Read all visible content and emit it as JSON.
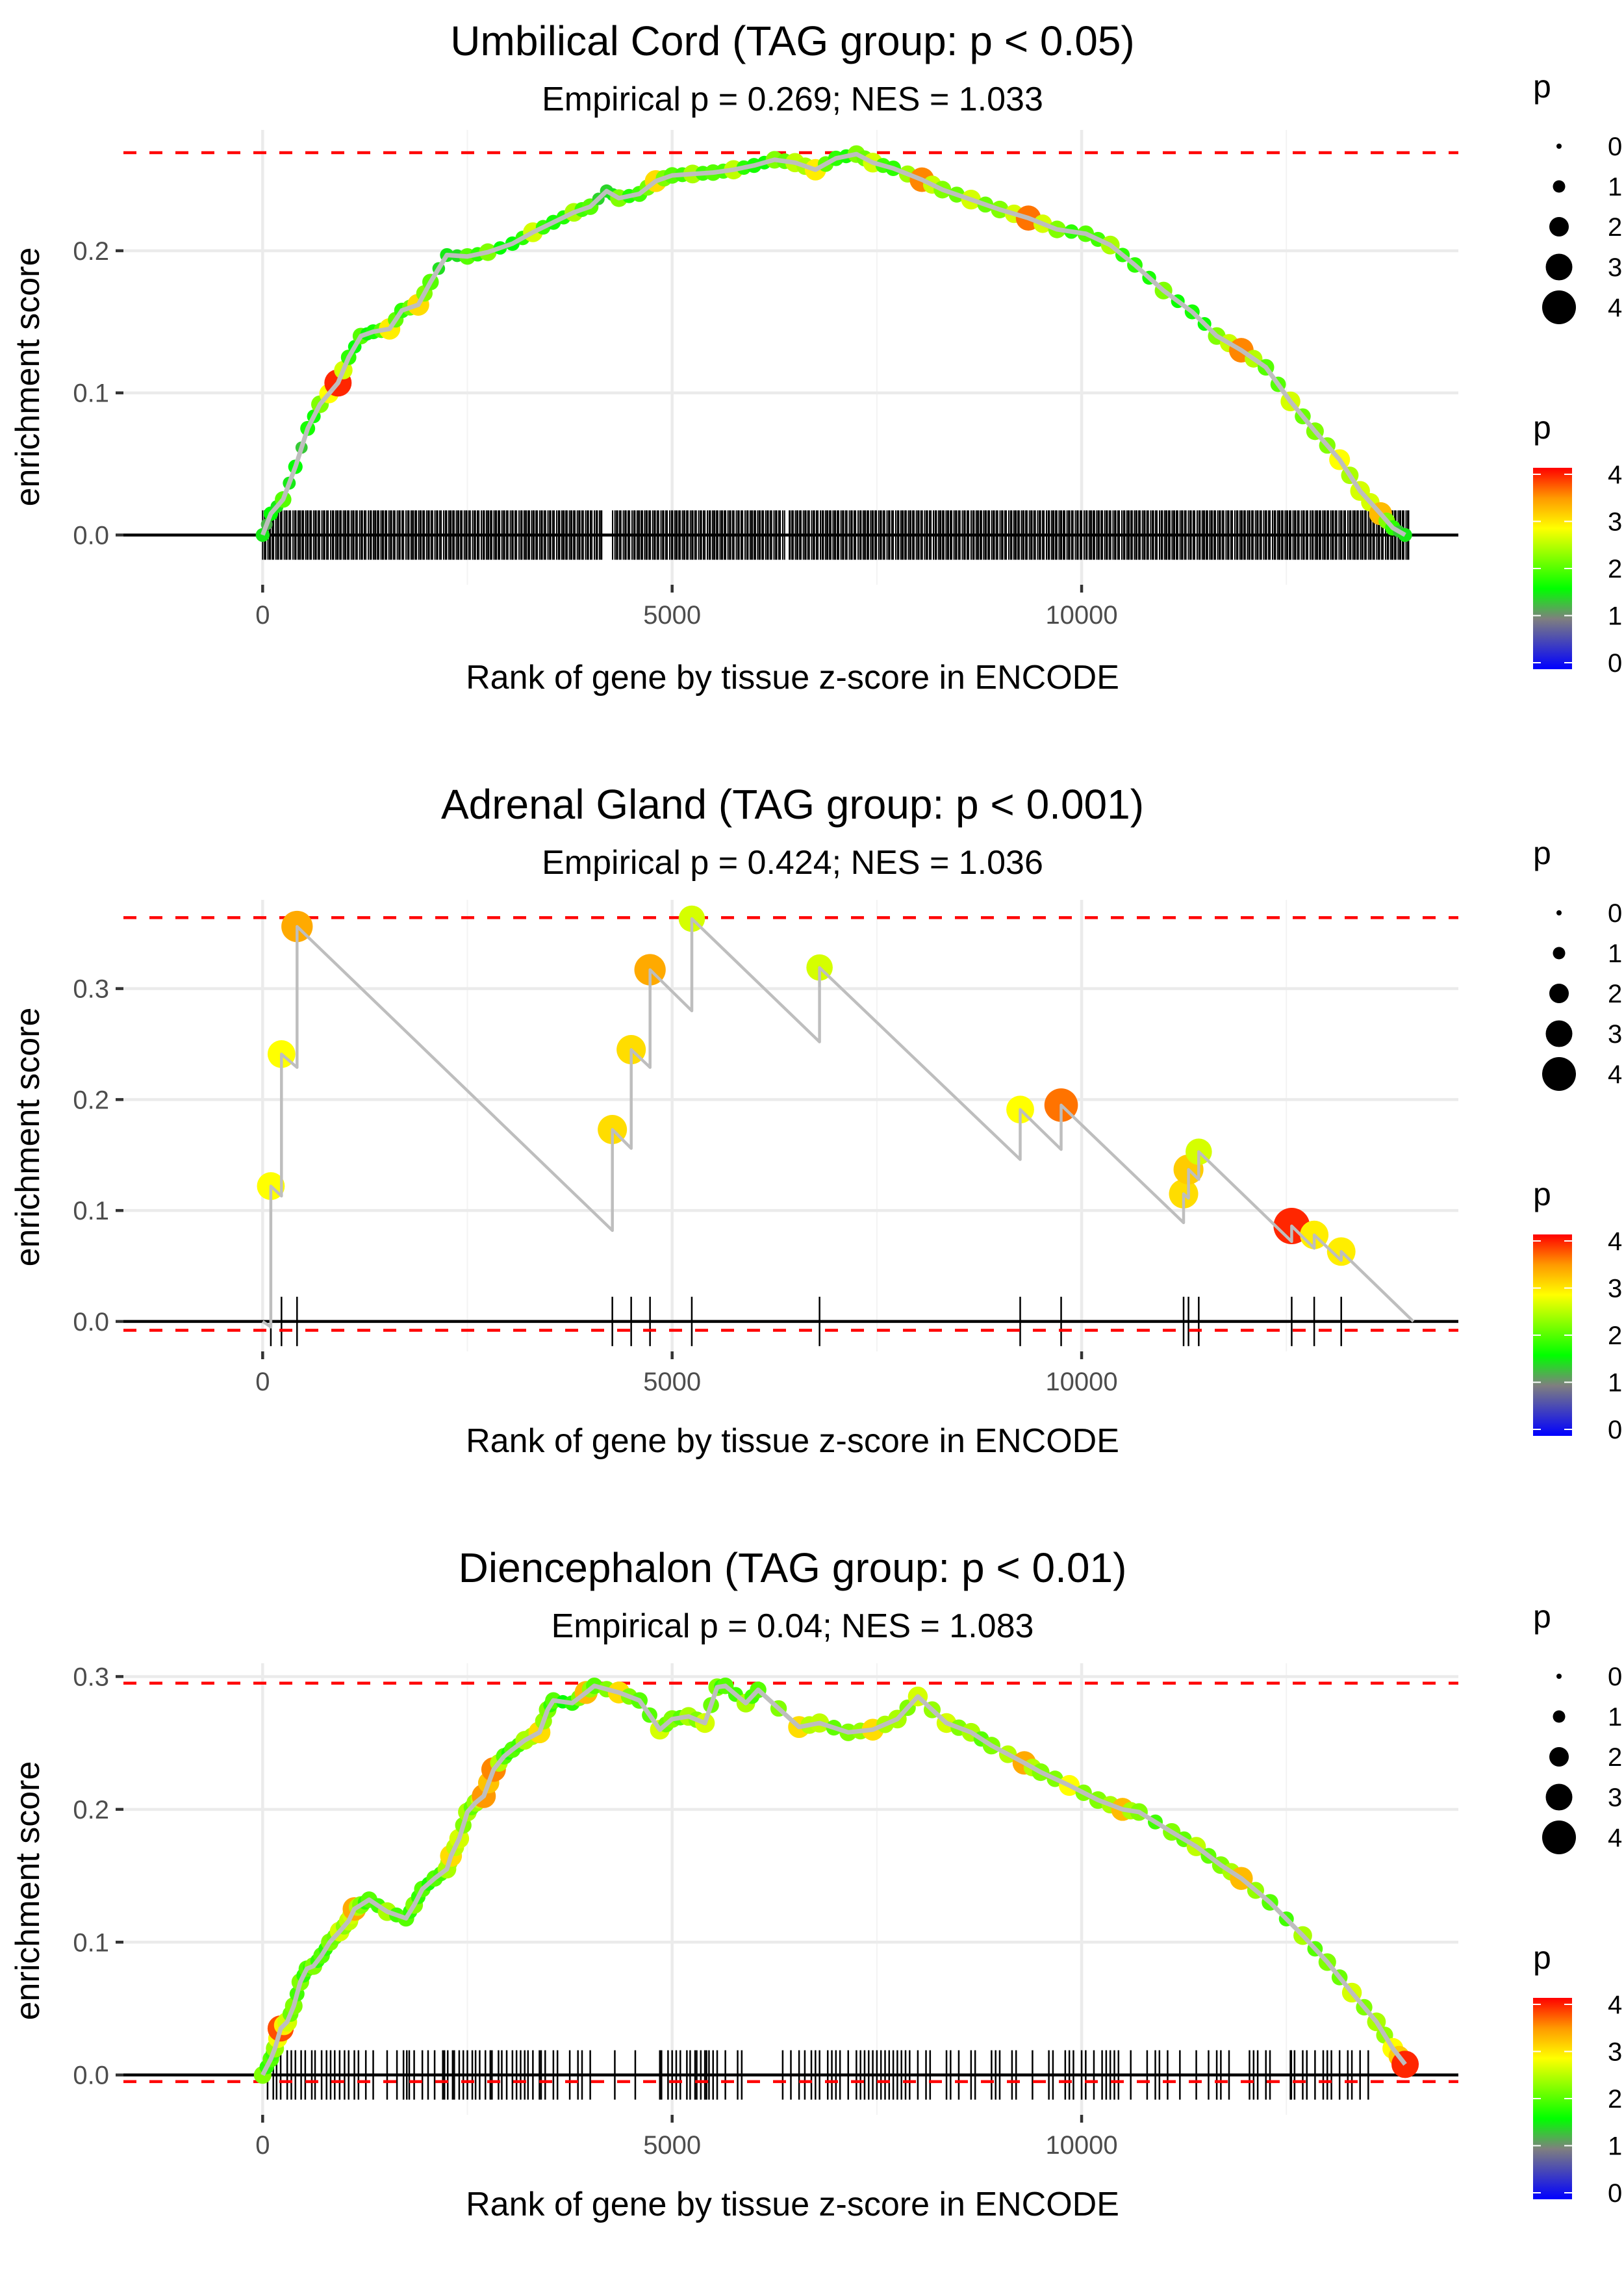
{
  "chart_data": [
    {
      "type": "line",
      "title": "Umbilical Cord (TAG group: p < 0.05)",
      "subtitle": "Empirical p = 0.269; NES = 1.033",
      "xlabel": "Rank of gene by tissue z-score in ENCODE",
      "ylabel": "enrichment score",
      "xlim": [
        -1700,
        14600
      ],
      "ylim": [
        -0.035,
        0.285
      ],
      "x_ticks": [
        0,
        5000,
        10000
      ],
      "x_tick_labels": [
        "0",
        "5000",
        "10000"
      ],
      "y_ticks": [
        0.0,
        0.1,
        0.2
      ],
      "y_tick_labels": [
        "0.0",
        "0.1",
        "0.2"
      ],
      "grid": true,
      "max_es": 0.269,
      "min_es": null,
      "rug_range": [
        0,
        14000
      ],
      "rug_dense": true,
      "rug_gaps": [
        [
          4150,
          4270
        ],
        [
          6380,
          6420
        ]
      ],
      "points": [
        [
          0,
          0.0,
          1.5
        ],
        [
          100,
          0.015,
          1.6
        ],
        [
          250,
          0.025,
          2.0
        ],
        [
          400,
          0.048,
          1.6
        ],
        [
          550,
          0.075,
          1.7
        ],
        [
          700,
          0.092,
          2.2
        ],
        [
          920,
          0.107,
          4.0
        ],
        [
          1050,
          0.125,
          1.8
        ],
        [
          1200,
          0.14,
          2.0
        ],
        [
          1350,
          0.143,
          1.7
        ],
        [
          1550,
          0.145,
          2.9
        ],
        [
          1700,
          0.158,
          1.8
        ],
        [
          1900,
          0.162,
          3.0
        ],
        [
          2050,
          0.178,
          2.0
        ],
        [
          2250,
          0.197,
          1.5
        ],
        [
          2500,
          0.196,
          2.0
        ],
        [
          2750,
          0.199,
          2.2
        ],
        [
          3050,
          0.205,
          1.6
        ],
        [
          3300,
          0.213,
          2.6
        ],
        [
          3550,
          0.22,
          1.7
        ],
        [
          3800,
          0.227,
          2.4
        ],
        [
          4000,
          0.231,
          2.0
        ],
        [
          4200,
          0.242,
          1.4
        ],
        [
          4350,
          0.237,
          2.2
        ],
        [
          4600,
          0.24,
          1.9
        ],
        [
          4800,
          0.249,
          3.0
        ],
        [
          5000,
          0.253,
          2.0
        ],
        [
          5250,
          0.254,
          2.4
        ],
        [
          5500,
          0.255,
          2.0
        ],
        [
          5750,
          0.257,
          2.5
        ],
        [
          6000,
          0.26,
          1.7
        ],
        [
          6250,
          0.264,
          2.2
        ],
        [
          6500,
          0.262,
          2.5
        ],
        [
          6750,
          0.257,
          2.9
        ],
        [
          7000,
          0.265,
          1.8
        ],
        [
          7250,
          0.268,
          2.2
        ],
        [
          7450,
          0.262,
          2.6
        ],
        [
          7700,
          0.258,
          1.8
        ],
        [
          8050,
          0.25,
          3.5
        ],
        [
          8300,
          0.243,
          2.2
        ],
        [
          8650,
          0.236,
          2.6
        ],
        [
          9000,
          0.229,
          2.2
        ],
        [
          9350,
          0.223,
          3.6
        ],
        [
          9700,
          0.215,
          2.2
        ],
        [
          10050,
          0.212,
          2.0
        ],
        [
          10350,
          0.204,
          2.4
        ],
        [
          10650,
          0.19,
          1.8
        ],
        [
          11000,
          0.172,
          2.2
        ],
        [
          11350,
          0.157,
          1.7
        ],
        [
          11650,
          0.14,
          2.2
        ],
        [
          11950,
          0.13,
          3.5
        ],
        [
          12250,
          0.118,
          2.0
        ],
        [
          12550,
          0.094,
          2.6
        ],
        [
          12850,
          0.073,
          2.2
        ],
        [
          13150,
          0.053,
          2.8
        ],
        [
          13400,
          0.031,
          2.6
        ],
        [
          13650,
          0.015,
          3.2
        ],
        [
          13800,
          0.005,
          1.8
        ],
        [
          13950,
          0.0,
          1.5
        ]
      ]
    },
    {
      "type": "line",
      "title": "Adrenal Gland (TAG group: p < 0.001)",
      "subtitle": "Empirical p = 0.424; NES = 1.036",
      "xlabel": "Rank of gene by tissue z-score in ENCODE",
      "ylabel": "enrichment score",
      "xlim": [
        -1700,
        14600
      ],
      "ylim": [
        -0.027,
        0.38
      ],
      "x_ticks": [
        0,
        5000,
        10000
      ],
      "x_tick_labels": [
        "0",
        "5000",
        "10000"
      ],
      "y_ticks": [
        0.0,
        0.1,
        0.2,
        0.3
      ],
      "y_tick_labels": [
        "0.0",
        "0.1",
        "0.2",
        "0.3"
      ],
      "grid": true,
      "max_es": 0.364,
      "min_es": -0.008,
      "end_rank": 14050,
      "hits": [
        {
          "rank": 100,
          "dip": -0.005,
          "es": 0.122,
          "p": 2.8
        },
        {
          "rank": 230,
          "dip": 0.113,
          "es": 0.241,
          "p": 2.8
        },
        {
          "rank": 420,
          "dip": 0.229,
          "es": 0.356,
          "p": 3.3
        },
        {
          "rank": 4270,
          "dip": 0.082,
          "es": 0.173,
          "p": 3.0
        },
        {
          "rank": 4500,
          "dip": 0.156,
          "es": 0.245,
          "p": 3.0
        },
        {
          "rank": 4730,
          "dip": 0.229,
          "es": 0.317,
          "p": 3.3
        },
        {
          "rank": 5240,
          "dip": 0.28,
          "es": 0.363,
          "p": 2.6
        },
        {
          "rank": 6800,
          "dip": 0.252,
          "es": 0.319,
          "p": 2.6
        },
        {
          "rank": 9250,
          "dip": 0.146,
          "es": 0.191,
          "p": 2.8
        },
        {
          "rank": 9750,
          "dip": 0.155,
          "es": 0.195,
          "p": 3.6
        },
        {
          "rank": 11245,
          "dip": 0.089,
          "es": 0.115,
          "p": 3.0
        },
        {
          "rank": 11305,
          "dip": 0.111,
          "es": 0.137,
          "p": 3.1
        },
        {
          "rank": 11430,
          "dip": 0.128,
          "es": 0.153,
          "p": 2.6
        },
        {
          "rank": 12565,
          "dip": 0.072,
          "es": 0.086,
          "p": 4.0
        },
        {
          "rank": 12840,
          "dip": 0.066,
          "es": 0.078,
          "p": 2.9
        },
        {
          "rank": 13170,
          "dip": 0.055,
          "es": 0.063,
          "p": 2.9
        }
      ]
    },
    {
      "type": "line",
      "title": "Diencephalon (TAG group: p < 0.01)",
      "subtitle": "Empirical p = 0.04; NES = 1.083",
      "xlabel": "Rank of gene by tissue z-score in ENCODE",
      "ylabel": "enrichment score",
      "xlim": [
        -1700,
        14600
      ],
      "ylim": [
        -0.03,
        0.31
      ],
      "x_ticks": [
        0,
        5000,
        10000
      ],
      "x_tick_labels": [
        "0",
        "5000",
        "10000"
      ],
      "y_ticks": [
        0.0,
        0.1,
        0.2,
        0.3
      ],
      "y_tick_labels": [
        "0.0",
        "0.1",
        "0.2",
        "0.3"
      ],
      "grid": true,
      "max_es": 0.295,
      "min_es": -0.005,
      "points": [
        [
          0,
          0.0,
          2.2
        ],
        [
          100,
          0.012,
          2.0
        ],
        [
          150,
          0.02,
          2.3
        ],
        [
          220,
          0.035,
          3.8
        ],
        [
          300,
          0.04,
          2.6
        ],
        [
          380,
          0.052,
          2.2
        ],
        [
          460,
          0.07,
          2.2
        ],
        [
          540,
          0.08,
          2.0
        ],
        [
          620,
          0.082,
          2.2
        ],
        [
          720,
          0.09,
          2.0
        ],
        [
          820,
          0.1,
          2.2
        ],
        [
          940,
          0.108,
          2.6
        ],
        [
          1050,
          0.116,
          2.5
        ],
        [
          1120,
          0.125,
          3.3
        ],
        [
          1200,
          0.128,
          2.2
        ],
        [
          1300,
          0.132,
          2.0
        ],
        [
          1520,
          0.123,
          2.4
        ],
        [
          1750,
          0.118,
          2.0
        ],
        [
          1850,
          0.128,
          2.2
        ],
        [
          1950,
          0.14,
          2.0
        ],
        [
          2100,
          0.148,
          2.0
        ],
        [
          2250,
          0.155,
          2.4
        ],
        [
          2300,
          0.165,
          3.0
        ],
        [
          2400,
          0.178,
          2.6
        ],
        [
          2500,
          0.198,
          2.4
        ],
        [
          2600,
          0.205,
          2.3
        ],
        [
          2700,
          0.21,
          3.4
        ],
        [
          2820,
          0.23,
          3.5
        ],
        [
          2950,
          0.24,
          2.0
        ],
        [
          3050,
          0.245,
          2.0
        ],
        [
          3200,
          0.252,
          2.4
        ],
        [
          3380,
          0.258,
          3.0
        ],
        [
          3480,
          0.275,
          2.2
        ],
        [
          3550,
          0.282,
          2.0
        ],
        [
          3780,
          0.28,
          1.8
        ],
        [
          3950,
          0.288,
          3.2
        ],
        [
          4050,
          0.293,
          2.0
        ],
        [
          4350,
          0.288,
          3.0
        ],
        [
          4600,
          0.282,
          2.0
        ],
        [
          4850,
          0.26,
          2.6
        ],
        [
          5000,
          0.268,
          2.2
        ],
        [
          5200,
          0.27,
          2.4
        ],
        [
          5400,
          0.265,
          2.6
        ],
        [
          5550,
          0.292,
          2.2
        ],
        [
          5650,
          0.293,
          2.0
        ],
        [
          5900,
          0.28,
          2.4
        ],
        [
          6050,
          0.29,
          2.0
        ],
        [
          6550,
          0.262,
          3.0
        ],
        [
          6800,
          0.265,
          2.5
        ],
        [
          7150,
          0.258,
          2.2
        ],
        [
          7450,
          0.26,
          3.0
        ],
        [
          7750,
          0.268,
          2.4
        ],
        [
          8000,
          0.285,
          2.6
        ],
        [
          8350,
          0.265,
          2.6
        ],
        [
          8650,
          0.258,
          2.4
        ],
        [
          8900,
          0.248,
          2.2
        ],
        [
          9300,
          0.235,
          3.3
        ],
        [
          9500,
          0.228,
          2.2
        ],
        [
          9850,
          0.218,
          2.8
        ],
        [
          10200,
          0.207,
          2.2
        ],
        [
          10500,
          0.2,
          3.2
        ],
        [
          10700,
          0.198,
          2.2
        ],
        [
          11100,
          0.183,
          2.2
        ],
        [
          11400,
          0.172,
          2.5
        ],
        [
          11700,
          0.158,
          2.2
        ],
        [
          11950,
          0.148,
          3.2
        ],
        [
          12300,
          0.13,
          2.0
        ],
        [
          12700,
          0.105,
          2.4
        ],
        [
          13000,
          0.085,
          2.2
        ],
        [
          13300,
          0.062,
          2.6
        ],
        [
          13600,
          0.04,
          2.4
        ],
        [
          13800,
          0.02,
          2.8
        ],
        [
          13950,
          0.008,
          4.0
        ]
      ],
      "rug_ranks": [
        60,
        130,
        170,
        220,
        300,
        350,
        400,
        470,
        520,
        600,
        640,
        720,
        780,
        830,
        880,
        940,
        1000,
        1050,
        1120,
        1170,
        1260,
        1350,
        1520,
        1640,
        1720,
        1760,
        1790,
        1850,
        1950,
        2020,
        2100,
        2200,
        2220,
        2260,
        2320,
        2340,
        2400,
        2450,
        2500,
        2560,
        2600,
        2650,
        2720,
        2780,
        2800,
        2880,
        2920,
        2980,
        3050,
        3100,
        3150,
        3200,
        3240,
        3300,
        3380,
        3400,
        3450,
        3550,
        3600,
        3750,
        3850,
        3900,
        4000,
        4300,
        4550,
        4850,
        4870,
        4950,
        5000,
        5050,
        5100,
        5180,
        5220,
        5280,
        5300,
        5350,
        5400,
        5420,
        5450,
        5500,
        5550,
        5650,
        5800,
        5850,
        6350,
        6450,
        6550,
        6620,
        6700,
        6750,
        6800,
        6900,
        6950,
        7000,
        7050,
        7150,
        7250,
        7300,
        7350,
        7400,
        7450,
        7500,
        7550,
        7600,
        7650,
        7700,
        7750,
        7800,
        7850,
        7900,
        8000,
        8100,
        8150,
        8350,
        8400,
        8500,
        8650,
        8700,
        8900,
        8950,
        9000,
        9150,
        9200,
        9400,
        9600,
        9650,
        9800,
        9850,
        9900,
        10000,
        10050,
        10150,
        10250,
        10300,
        10350,
        10400,
        10450,
        10600,
        10800,
        10900,
        10950,
        11050,
        11200,
        11400,
        11550,
        11650,
        11700,
        11800,
        12050,
        12100,
        12150,
        12250,
        12300,
        12550,
        12560,
        12600,
        12700,
        12750,
        12850,
        12950,
        13000,
        13050,
        13150,
        13250,
        13300,
        13400,
        13500
      ]
    }
  ],
  "legends": [
    {
      "size_legend": {
        "title": "p",
        "labels": [
          "0",
          "1",
          "2",
          "3",
          "4"
        ]
      },
      "color_legend": {
        "title": "p",
        "labels": [
          "4",
          "3",
          "2",
          "1",
          "0"
        ]
      }
    },
    {
      "size_legend": {
        "title": "p",
        "labels": [
          "0",
          "1",
          "2",
          "3",
          "4"
        ]
      },
      "color_legend": {
        "title": "p",
        "labels": [
          "4",
          "3",
          "2",
          "1",
          "0"
        ]
      }
    },
    {
      "size_legend": {
        "title": "p",
        "labels": [
          "0",
          "1",
          "2",
          "3",
          "4"
        ]
      },
      "color_legend": {
        "title": "p",
        "labels": [
          "4",
          "3",
          "2",
          "1",
          "0"
        ]
      }
    }
  ],
  "colors": {
    "max_line": "#ff0000",
    "curve": "#bebebe",
    "zero_line": "#000000",
    "grid": "#ebebeb",
    "scale": [
      "#0000ff",
      "#7f7f7f",
      "#00ff00",
      "#ffff00",
      "#ff8c00",
      "#ff0000"
    ]
  }
}
